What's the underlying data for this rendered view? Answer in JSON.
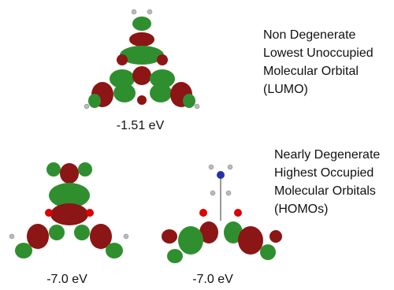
{
  "lumo": {
    "description": [
      "Non Degenerate",
      "Lowest Unoccupied",
      "Molecular Orbital",
      "(LUMO)"
    ],
    "energy": "-1.51 eV"
  },
  "homos": {
    "description": [
      "Nearly Degenerate",
      "Highest Occupied",
      "Molecular Orbitals",
      "(HOMOs)"
    ],
    "orbitals": [
      {
        "energy": "-7.0 eV"
      },
      {
        "energy": "-7.0 eV"
      }
    ]
  }
}
